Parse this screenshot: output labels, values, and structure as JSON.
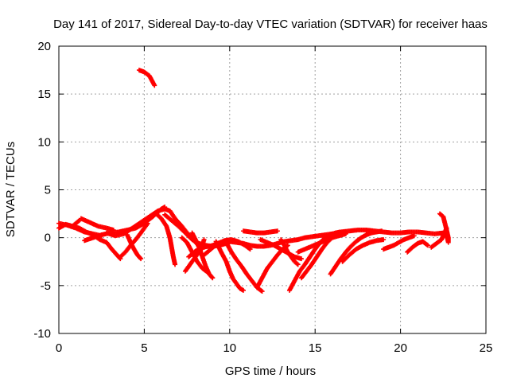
{
  "chart_data": {
    "type": "scatter",
    "title": "Day 141 of 2017, Sidereal Day-to-day VTEC variation (SDTVAR) for receiver haas",
    "xlabel": "GPS time / hours",
    "ylabel": "SDTVAR / TECUs",
    "xlim": [
      0,
      25
    ],
    "ylim": [
      -10,
      20
    ],
    "x_ticks": [
      0,
      5,
      10,
      15,
      20,
      25
    ],
    "y_ticks": [
      -10,
      -5,
      0,
      5,
      10,
      15,
      20
    ],
    "grid": true,
    "marker": "+",
    "color": "#ff0000",
    "tracks": [
      {
        "x": [
          4.7,
          5.0,
          5.3,
          5.6
        ],
        "y": [
          17.5,
          17.3,
          16.9,
          15.9
        ]
      },
      {
        "x": [
          0.0,
          0.5,
          1.0,
          1.5,
          2.0,
          2.5
        ],
        "y": [
          1.5,
          1.3,
          1.0,
          0.6,
          0.4,
          0.2
        ]
      },
      {
        "x": [
          0.0,
          0.4,
          0.8,
          1.2
        ],
        "y": [
          1.0,
          1.4,
          1.2,
          1.8
        ]
      },
      {
        "x": [
          1.3,
          1.8,
          2.3,
          2.8,
          3.2
        ],
        "y": [
          2.0,
          1.6,
          1.2,
          1.0,
          0.8
        ]
      },
      {
        "x": [
          0.8,
          1.2,
          1.6,
          2.0,
          2.4,
          2.8,
          3.1,
          3.4,
          3.6
        ],
        "y": [
          1.2,
          1.0,
          0.6,
          0.3,
          -0.2,
          -0.5,
          -1.2,
          -1.8,
          -2.2
        ]
      },
      {
        "x": [
          1.5,
          2.0,
          2.5,
          3.0,
          3.5,
          4.0,
          4.5,
          5.0,
          5.5,
          6.0,
          6.2
        ],
        "y": [
          -0.3,
          0.0,
          0.3,
          0.5,
          0.6,
          0.8,
          1.0,
          1.5,
          2.2,
          3.0,
          3.2
        ]
      },
      {
        "x": [
          2.8,
          3.3,
          3.8,
          4.3,
          4.8,
          5.3,
          5.8,
          6.2,
          6.5,
          6.8,
          7.2,
          7.6,
          8.0,
          8.4
        ],
        "y": [
          0.5,
          0.2,
          0.4,
          1.0,
          1.6,
          2.2,
          2.8,
          3.0,
          2.8,
          2.0,
          1.2,
          0.3,
          -0.5,
          -1.2
        ]
      },
      {
        "x": [
          3.6,
          3.9,
          4.2,
          4.5,
          4.8,
          5.0,
          5.2
        ],
        "y": [
          -2.0,
          -1.5,
          -0.8,
          -0.2,
          0.5,
          1.0,
          1.5
        ]
      },
      {
        "x": [
          4.0,
          4.2,
          4.4,
          4.6,
          4.8
        ],
        "y": [
          0.3,
          -0.5,
          -1.2,
          -1.8,
          -2.2
        ]
      },
      {
        "x": [
          5.7,
          6.0,
          6.3,
          6.5,
          6.6,
          6.7,
          6.8
        ],
        "y": [
          2.5,
          2.0,
          1.2,
          0.0,
          -1.0,
          -2.0,
          -2.8
        ]
      },
      {
        "x": [
          6.2,
          6.6,
          7.0,
          7.4,
          7.8,
          8.2,
          8.6,
          9.0,
          9.4,
          9.8,
          10.2
        ],
        "y": [
          2.4,
          1.8,
          1.2,
          0.5,
          -0.2,
          -0.6,
          -0.8,
          -0.9,
          -0.8,
          -0.6,
          -0.3
        ]
      },
      {
        "x": [
          7.2,
          7.5,
          7.8,
          8.1,
          8.4,
          8.7
        ],
        "y": [
          0.0,
          -0.5,
          -1.5,
          -2.5,
          -3.2,
          -3.6
        ]
      },
      {
        "x": [
          7.4,
          7.6,
          7.8,
          8.0,
          8.2,
          8.4,
          8.5
        ],
        "y": [
          -3.5,
          -3.0,
          -2.5,
          -2.0,
          -1.5,
          -0.8,
          -0.2
        ]
      },
      {
        "x": [
          7.8,
          8.0,
          8.2,
          8.4,
          8.6,
          8.8,
          9.0
        ],
        "y": [
          0.5,
          -0.2,
          -1.0,
          -2.0,
          -3.0,
          -3.8,
          -4.2
        ]
      },
      {
        "x": [
          7.6,
          8.0,
          8.4,
          8.8,
          9.2,
          9.6,
          10.0,
          10.4,
          10.8,
          11.2,
          11.6,
          12.0,
          12.4,
          12.8,
          13.2,
          13.6,
          14.0,
          14.4,
          14.8,
          15.2,
          15.6,
          16.0,
          16.4,
          16.8
        ],
        "y": [
          -2.0,
          -1.4,
          -1.0,
          -0.9,
          -0.7,
          -0.5,
          -0.4,
          -0.5,
          -0.6,
          -0.8,
          -0.9,
          -0.9,
          -0.8,
          -0.6,
          -0.4,
          -0.3,
          -0.2,
          0.0,
          0.1,
          0.2,
          0.3,
          0.4,
          0.5,
          0.6
        ]
      },
      {
        "x": [
          8.5,
          8.9,
          9.3,
          9.7,
          10.1,
          10.5,
          10.9,
          11.2
        ],
        "y": [
          -1.8,
          -1.2,
          -0.6,
          -0.3,
          -0.2,
          -0.4,
          -0.8,
          -1.2
        ]
      },
      {
        "x": [
          9.2,
          9.5,
          9.8,
          10.0,
          10.2,
          10.4,
          10.6,
          10.8
        ],
        "y": [
          -0.4,
          -1.5,
          -2.5,
          -3.5,
          -4.3,
          -4.8,
          -5.3,
          -5.5
        ]
      },
      {
        "x": [
          9.8,
          10.1,
          10.4,
          10.7,
          11.0,
          11.3,
          11.6,
          11.9
        ],
        "y": [
          -0.5,
          -1.5,
          -2.3,
          -3.0,
          -3.8,
          -4.5,
          -5.2,
          -5.6
        ]
      },
      {
        "x": [
          11.6,
          11.9,
          12.2,
          12.5,
          12.8,
          13.1,
          13.4
        ],
        "y": [
          -5.2,
          -4.2,
          -3.2,
          -2.5,
          -1.8,
          -1.2,
          -0.8
        ]
      },
      {
        "x": [
          10.8,
          11.2,
          11.6,
          12.0,
          12.4,
          12.8
        ],
        "y": [
          0.7,
          0.6,
          0.5,
          0.5,
          0.6,
          0.7
        ]
      },
      {
        "x": [
          11.8,
          12.2,
          12.6,
          13.0,
          13.4,
          13.8,
          14.2
        ],
        "y": [
          -0.2,
          -0.5,
          -0.8,
          -1.2,
          -1.6,
          -2.0,
          -2.2
        ]
      },
      {
        "x": [
          13.0,
          13.2,
          13.4,
          13.6,
          13.8,
          14.0
        ],
        "y": [
          -0.2,
          -0.8,
          -1.5,
          -2.0,
          -2.5,
          -2.8
        ]
      },
      {
        "x": [
          13.5,
          13.8,
          14.1,
          14.4,
          14.7,
          15.0,
          15.3,
          15.6,
          15.9,
          16.2,
          16.5
        ],
        "y": [
          -5.5,
          -4.5,
          -3.5,
          -2.8,
          -2.0,
          -1.2,
          -0.5,
          0.0,
          0.3,
          0.5,
          0.6
        ]
      },
      {
        "x": [
          14.2,
          14.5,
          14.8,
          15.1,
          15.4,
          15.7,
          16.0,
          16.3
        ],
        "y": [
          -4.2,
          -3.5,
          -2.8,
          -2.0,
          -1.2,
          -0.5,
          0.0,
          0.3
        ]
      },
      {
        "x": [
          14.0,
          14.4,
          14.8,
          15.2,
          15.6,
          16.0,
          16.4,
          16.8
        ],
        "y": [
          -1.5,
          -1.2,
          -0.9,
          -0.6,
          -0.3,
          0.0,
          0.2,
          0.4
        ]
      },
      {
        "x": [
          15.9,
          16.2,
          16.5,
          16.8,
          17.1,
          17.4,
          17.7,
          18.0,
          18.3,
          18.6,
          18.9
        ],
        "y": [
          -3.8,
          -3.0,
          -2.2,
          -1.5,
          -0.9,
          -0.4,
          0.0,
          0.3,
          0.5,
          0.6,
          0.7
        ]
      },
      {
        "x": [
          16.6,
          17.0,
          17.4,
          17.8,
          18.2,
          18.6,
          19.0
        ],
        "y": [
          -2.5,
          -1.8,
          -1.2,
          -0.8,
          -0.5,
          -0.3,
          -0.2
        ]
      },
      {
        "x": [
          16.0,
          16.5,
          17.0,
          17.5,
          18.0,
          18.5,
          19.0,
          19.5,
          20.0,
          20.5,
          21.0,
          21.5,
          22.0,
          22.5
        ],
        "y": [
          0.4,
          0.6,
          0.7,
          0.8,
          0.8,
          0.7,
          0.6,
          0.5,
          0.5,
          0.6,
          0.6,
          0.5,
          0.4,
          0.5
        ]
      },
      {
        "x": [
          19.0,
          19.3,
          19.6,
          19.9,
          20.2,
          20.5,
          20.8
        ],
        "y": [
          -1.2,
          -1.0,
          -0.8,
          -0.5,
          -0.2,
          0.0,
          0.2
        ]
      },
      {
        "x": [
          20.4,
          20.7,
          21.0,
          21.3,
          21.6
        ],
        "y": [
          -1.5,
          -1.0,
          -0.6,
          -0.4,
          -0.8
        ]
      },
      {
        "x": [
          21.8,
          22.1,
          22.4,
          22.5,
          22.6,
          22.7
        ],
        "y": [
          -1.0,
          -0.6,
          -0.2,
          0.2,
          0.6,
          1.0
        ]
      },
      {
        "x": [
          22.3,
          22.5,
          22.6,
          22.7,
          22.8,
          22.8,
          22.7
        ],
        "y": [
          2.5,
          2.2,
          1.5,
          0.8,
          0.0,
          -0.5,
          0.3
        ]
      }
    ]
  }
}
